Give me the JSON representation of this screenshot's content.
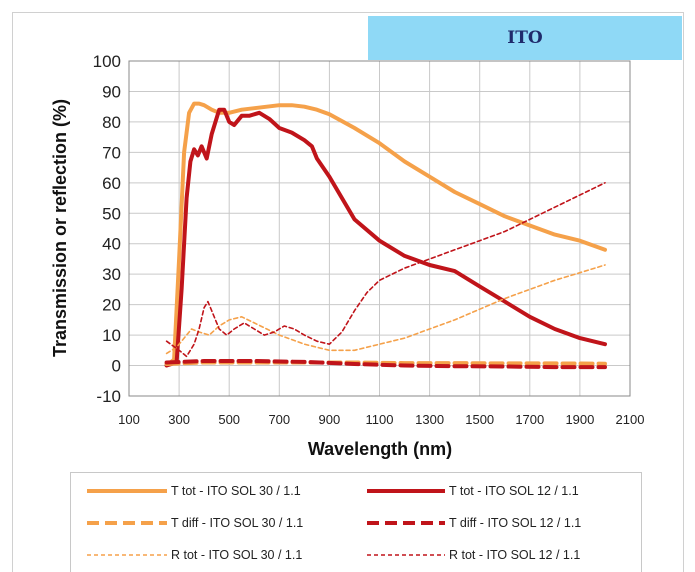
{
  "panel_label": "ITO",
  "chart_data": {
    "type": "line",
    "xlabel": "Wavelength (nm)",
    "ylabel": "Transmission or reflection (%)",
    "xlim": [
      100,
      2100
    ],
    "ylim": [
      -10,
      100
    ],
    "xticks": [
      100,
      300,
      500,
      700,
      900,
      1100,
      1300,
      1500,
      1700,
      1900,
      2100
    ],
    "yticks": [
      -10,
      0,
      10,
      20,
      30,
      40,
      50,
      60,
      70,
      80,
      90,
      100
    ],
    "grid": true,
    "legend_position": "bottom",
    "series": [
      {
        "name": "T tot - ITO SOL 30 / 1.1",
        "color": "#f5a14a",
        "style": "solid",
        "width": 4,
        "x": [
          250,
          280,
          300,
          320,
          340,
          360,
          380,
          400,
          430,
          460,
          500,
          550,
          600,
          650,
          700,
          750,
          800,
          850,
          900,
          1000,
          1100,
          1200,
          1300,
          1400,
          1500,
          1600,
          1700,
          1800,
          1900,
          2000
        ],
        "y": [
          0,
          2,
          35,
          70,
          83,
          86,
          86,
          85.5,
          84,
          83,
          83,
          84,
          84.5,
          85,
          85.5,
          85.5,
          85,
          84,
          82.5,
          78,
          73,
          67,
          62,
          57,
          53,
          49,
          46,
          43,
          41,
          38
        ]
      },
      {
        "name": "T tot - ITO SOL 12 / 1.1",
        "color": "#c0141a",
        "style": "solid",
        "width": 4,
        "x": [
          250,
          290,
          310,
          330,
          345,
          360,
          375,
          390,
          410,
          430,
          460,
          480,
          500,
          520,
          550,
          580,
          620,
          660,
          700,
          750,
          800,
          830,
          850,
          900,
          950,
          1000,
          1100,
          1200,
          1300,
          1400,
          1500,
          1600,
          1700,
          1800,
          1900,
          2000
        ],
        "y": [
          0,
          1,
          25,
          55,
          67,
          71,
          69,
          72,
          68,
          76,
          84,
          84,
          80,
          79,
          82,
          82,
          83,
          81,
          78,
          76.5,
          74,
          72,
          68,
          62,
          55,
          48,
          41,
          36,
          33,
          31,
          26,
          21,
          16,
          12,
          9,
          7
        ]
      },
      {
        "name": "T diff - ITO SOL 30 / 1.1",
        "color": "#f5a14a",
        "style": "dashed",
        "width": 4,
        "x": [
          250,
          400,
          600,
          800,
          1000,
          1200,
          1400,
          1600,
          1800,
          2000
        ],
        "y": [
          0.5,
          1,
          1,
          1,
          1,
          0.8,
          0.8,
          0.7,
          0.7,
          0.6
        ]
      },
      {
        "name": "T diff - ITO SOL 12 / 1.1",
        "color": "#c0141a",
        "style": "dashed",
        "width": 4,
        "x": [
          250,
          400,
          600,
          800,
          1000,
          1200,
          1400,
          1600,
          1800,
          2000
        ],
        "y": [
          1,
          1.5,
          1.5,
          1.2,
          0.5,
          0,
          -0.2,
          -0.3,
          -0.5,
          -0.5
        ]
      },
      {
        "name": "R tot - ITO SOL 30 / 1.1",
        "color": "#f5a14a",
        "style": "dashed-thin",
        "width": 1.6,
        "x": [
          250,
          290,
          320,
          350,
          380,
          420,
          460,
          500,
          550,
          600,
          650,
          700,
          800,
          900,
          1000,
          1100,
          1200,
          1300,
          1400,
          1500,
          1600,
          1700,
          1800,
          1900,
          2000
        ],
        "y": [
          4,
          6,
          9,
          12,
          11,
          10,
          13,
          15,
          16,
          14,
          12,
          10,
          7,
          5,
          5,
          7,
          9,
          12,
          15,
          18.5,
          22,
          25,
          28,
          30.5,
          33
        ]
      },
      {
        "name": "R tot - ITO SOL 12 / 1.1",
        "color": "#c0141a",
        "style": "dashed-thin",
        "width": 1.6,
        "x": [
          250,
          300,
          330,
          360,
          380,
          400,
          415,
          430,
          460,
          490,
          520,
          560,
          600,
          640,
          680,
          720,
          760,
          800,
          850,
          900,
          950,
          1000,
          1050,
          1100,
          1200,
          1300,
          1400,
          1500,
          1600,
          1700,
          1800,
          1900,
          2000
        ],
        "y": [
          8,
          5,
          3,
          7,
          12,
          19,
          21,
          18,
          12,
          10,
          12,
          14,
          12,
          10,
          11,
          13,
          12,
          10,
          8,
          7,
          11,
          18,
          24,
          28,
          32,
          35,
          38,
          41,
          44,
          48,
          52,
          56,
          60
        ]
      }
    ]
  }
}
